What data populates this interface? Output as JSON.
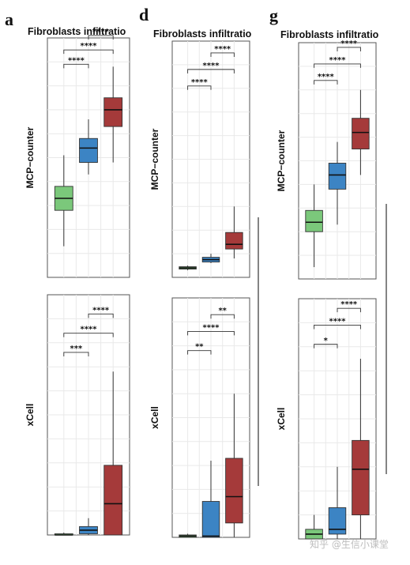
{
  "figure": {
    "watermark": "知乎 @生信小课堂"
  },
  "palette": {
    "green": "#7bc87b",
    "blue": "#3c84c4",
    "red": "#a53a3a",
    "grid": "#e9e9e9",
    "frame": "#555555"
  },
  "chart_data": [
    {
      "id": "a-mcp",
      "type": "boxplot",
      "letter": "a",
      "title": "Fibroblasts infiltratio",
      "ylabel": "MCP−counter",
      "groups": [
        {
          "color": "green",
          "whisker_low": 0.13,
          "q1": 0.28,
          "median": 0.33,
          "q3": 0.38,
          "whisker_high": 0.51
        },
        {
          "color": "blue",
          "whisker_low": 0.43,
          "q1": 0.48,
          "median": 0.54,
          "q3": 0.58,
          "whisker_high": 0.66
        },
        {
          "color": "red",
          "whisker_low": 0.48,
          "q1": 0.63,
          "median": 0.7,
          "q3": 0.75,
          "whisker_high": 0.88
        }
      ],
      "comparisons": [
        {
          "from": 0,
          "to": 1,
          "label": "****",
          "level": 0.89
        },
        {
          "from": 0,
          "to": 2,
          "label": "****",
          "level": 0.95
        },
        {
          "from": 1,
          "to": 2,
          "label": "****",
          "level": 1.01
        }
      ]
    },
    {
      "id": "a-xcell",
      "type": "boxplot",
      "letter": "",
      "title": "",
      "ylabel": "xCell",
      "groups": [
        {
          "color": "green",
          "whisker_low": 0.0,
          "q1": 0.0,
          "median": 0.0,
          "q3": 0.005,
          "whisker_high": 0.01
        },
        {
          "color": "blue",
          "whisker_low": 0.0,
          "q1": 0.005,
          "median": 0.02,
          "q3": 0.035,
          "whisker_high": 0.07
        },
        {
          "color": "red",
          "whisker_low": 0.0,
          "q1": 0.0,
          "median": 0.13,
          "q3": 0.29,
          "whisker_high": 0.68
        }
      ],
      "comparisons": [
        {
          "from": 0,
          "to": 1,
          "label": "***",
          "level": 0.76
        },
        {
          "from": 0,
          "to": 2,
          "label": "****",
          "level": 0.84
        },
        {
          "from": 1,
          "to": 2,
          "label": "****",
          "level": 0.92
        }
      ]
    },
    {
      "id": "d-mcp",
      "type": "boxplot",
      "letter": "d",
      "title": "Fibroblasts infiltratio",
      "ylabel": "MCP−counter",
      "groups": [
        {
          "color": "green",
          "whisker_low": 0.03,
          "q1": 0.035,
          "median": 0.04,
          "q3": 0.045,
          "whisker_high": 0.05
        },
        {
          "color": "blue",
          "whisker_low": 0.06,
          "q1": 0.065,
          "median": 0.075,
          "q3": 0.085,
          "whisker_high": 0.1
        },
        {
          "color": "red",
          "whisker_low": 0.08,
          "q1": 0.12,
          "median": 0.14,
          "q3": 0.19,
          "whisker_high": 0.3
        }
      ],
      "comparisons": [
        {
          "from": 0,
          "to": 1,
          "label": "****",
          "level": 0.81
        },
        {
          "from": 0,
          "to": 2,
          "label": "****",
          "level": 0.88
        },
        {
          "from": 1,
          "to": 2,
          "label": "****",
          "level": 0.95
        }
      ]
    },
    {
      "id": "d-xcell",
      "type": "boxplot",
      "letter": "",
      "title": "",
      "ylabel": "xCell",
      "groups": [
        {
          "color": "green",
          "whisker_low": 0.0,
          "q1": 0.0,
          "median": 0.005,
          "q3": 0.01,
          "whisker_high": 0.015
        },
        {
          "color": "blue",
          "whisker_low": 0.0,
          "q1": 0.0,
          "median": 0.005,
          "q3": 0.15,
          "whisker_high": 0.32
        },
        {
          "color": "red",
          "whisker_low": 0.0,
          "q1": 0.06,
          "median": 0.17,
          "q3": 0.33,
          "whisker_high": 0.6
        }
      ],
      "comparisons": [
        {
          "from": 0,
          "to": 1,
          "label": "**",
          "level": 0.78
        },
        {
          "from": 0,
          "to": 2,
          "label": "****",
          "level": 0.86
        },
        {
          "from": 1,
          "to": 2,
          "label": "**",
          "level": 0.93
        }
      ]
    },
    {
      "id": "g-mcp",
      "type": "boxplot",
      "letter": "g",
      "title": "Fibroblasts infiltratio",
      "ylabel": "MCP−counter",
      "groups": [
        {
          "color": "green",
          "whisker_low": 0.05,
          "q1": 0.2,
          "median": 0.24,
          "q3": 0.29,
          "whisker_high": 0.4
        },
        {
          "color": "blue",
          "whisker_low": 0.23,
          "q1": 0.38,
          "median": 0.44,
          "q3": 0.49,
          "whisker_high": 0.58
        },
        {
          "color": "red",
          "whisker_low": 0.44,
          "q1": 0.55,
          "median": 0.62,
          "q3": 0.68,
          "whisker_high": 0.8
        }
      ],
      "comparisons": [
        {
          "from": 0,
          "to": 1,
          "label": "****",
          "level": 0.84
        },
        {
          "from": 0,
          "to": 2,
          "label": "****",
          "level": 0.91
        },
        {
          "from": 1,
          "to": 2,
          "label": "****",
          "level": 0.98
        }
      ]
    },
    {
      "id": "g-xcell",
      "type": "boxplot",
      "letter": "",
      "title": "",
      "ylabel": "xCell",
      "groups": [
        {
          "color": "green",
          "whisker_low": 0.0,
          "q1": 0.0,
          "median": 0.02,
          "q3": 0.04,
          "whisker_high": 0.1
        },
        {
          "color": "blue",
          "whisker_low": 0.0,
          "q1": 0.02,
          "median": 0.04,
          "q3": 0.13,
          "whisker_high": 0.3
        },
        {
          "color": "red",
          "whisker_low": 0.0,
          "q1": 0.1,
          "median": 0.29,
          "q3": 0.41,
          "whisker_high": 0.75
        }
      ],
      "comparisons": [
        {
          "from": 0,
          "to": 1,
          "label": "*",
          "level": 0.81
        },
        {
          "from": 0,
          "to": 2,
          "label": "****",
          "level": 0.89
        },
        {
          "from": 1,
          "to": 2,
          "label": "****",
          "level": 0.96
        }
      ]
    }
  ]
}
